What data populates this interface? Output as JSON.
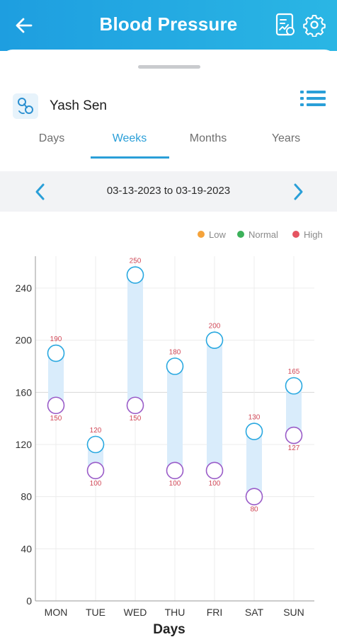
{
  "header": {
    "title": "Blood Pressure",
    "back_icon": "arrow-left-icon",
    "report_icon": "report-icon",
    "settings_icon": "gear-icon"
  },
  "patient": {
    "name": "Yash Sen",
    "avatar_icon": "bp-device-icon",
    "menu_icon": "list-icon"
  },
  "tabs": [
    {
      "label": "Days",
      "active": false
    },
    {
      "label": "Weeks",
      "active": true
    },
    {
      "label": "Months",
      "active": false
    },
    {
      "label": "Years",
      "active": false
    }
  ],
  "date_range": {
    "label": "03-13-2023 to 03-19-2023",
    "prev_icon": "chevron-left-icon",
    "next_icon": "chevron-right-icon"
  },
  "colors": {
    "accent": "#2a9fd8",
    "low": "#f5a33b",
    "normal": "#3cb15a",
    "high": "#e55461",
    "systolic": "#29a8e0",
    "diastolic": "#9a5cc8",
    "range_fill": "#d9ecfb",
    "value_label": "#d24a59"
  },
  "chart_data": {
    "type": "scatter",
    "legend": [
      {
        "label": "Low",
        "color": "#f5a33b"
      },
      {
        "label": "Normal",
        "color": "#3cb15a"
      },
      {
        "label": "High",
        "color": "#e55461"
      }
    ],
    "legend_position": "top-right",
    "categories": [
      "MON",
      "TUE",
      "WED",
      "THU",
      "FRI",
      "SAT",
      "SUN"
    ],
    "series": [
      {
        "values": [
          190,
          120,
          250,
          180,
          200,
          130,
          165
        ]
      },
      {
        "values": [
          150,
          100,
          150,
          100,
          100,
          80,
          127
        ]
      }
    ],
    "y_ticks": [
      "0",
      "40",
      "80",
      "120",
      "160",
      "200",
      "240"
    ],
    "ylim": [
      0,
      265
    ],
    "xlabel": "Days",
    "ylabel": "",
    "grid": true
  }
}
